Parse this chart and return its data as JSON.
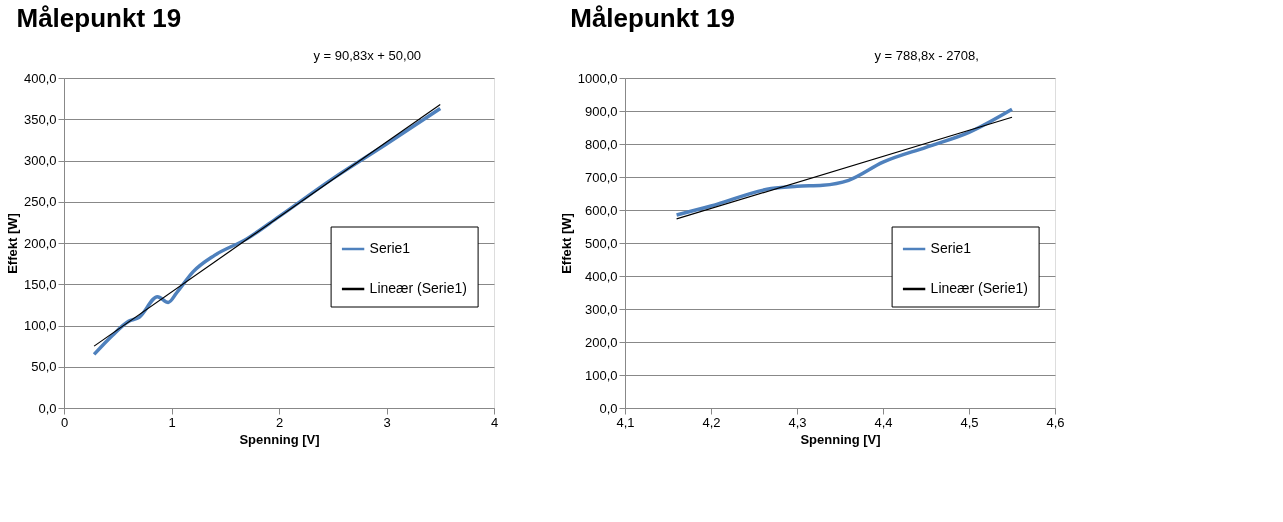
{
  "chart_data": [
    {
      "type": "line",
      "title": "Målepunkt 19",
      "xlabel": "Spenning [V]",
      "ylabel": "Effekt [W]",
      "annotations": [
        "y = 90,83x + 50,00"
      ],
      "xlim": [
        0,
        4
      ],
      "xticks": [
        0,
        1,
        2,
        3,
        4
      ],
      "ylim": [
        0,
        400
      ],
      "yticks": [
        {
          "value": 0,
          "label": "0,0"
        },
        {
          "value": 50,
          "label": "50,0"
        },
        {
          "value": 100,
          "label": "100,0"
        },
        {
          "value": 150,
          "label": "150,0"
        },
        {
          "value": 200,
          "label": "200,0"
        },
        {
          "value": 250,
          "label": "250,0"
        },
        {
          "value": 300,
          "label": "300,0"
        },
        {
          "value": 350,
          "label": "350,0"
        },
        {
          "value": 400,
          "label": "400,0"
        }
      ],
      "grid": "y",
      "legend": "right",
      "marker": "none",
      "series": [
        {
          "name": "Serie1",
          "color": "#4f81bd",
          "x": [
            0.28,
            0.45,
            0.6,
            0.7,
            0.87,
            0.97,
            1.05,
            1.2,
            1.4,
            1.7,
            2.0,
            2.5,
            3.0,
            3.5
          ],
          "values": [
            65,
            88,
            105,
            110,
            135,
            128,
            140,
            165,
            185,
            205,
            232,
            278,
            320,
            363
          ]
        },
        {
          "name": "Lineær (Serie1)",
          "color": "#000000",
          "type": "line",
          "x": [
            0.28,
            3.5
          ],
          "values": [
            75,
            368
          ]
        }
      ]
    },
    {
      "type": "line",
      "title": "Målepunkt 19",
      "xlabel": "Spenning [V]",
      "ylabel": "Effekt [W]",
      "annotations": [
        "y = 788,8x - 2708,"
      ],
      "xlim": [
        4.1,
        4.6
      ],
      "xticks": [
        {
          "value": 4.1,
          "label": "4,1"
        },
        {
          "value": 4.2,
          "label": "4,2"
        },
        {
          "value": 4.3,
          "label": "4,3"
        },
        {
          "value": 4.4,
          "label": "4,4"
        },
        {
          "value": 4.5,
          "label": "4,5"
        },
        {
          "value": 4.6,
          "label": "4,6"
        }
      ],
      "ylim": [
        0,
        1000
      ],
      "yticks": [
        {
          "value": 0,
          "label": "0,0"
        },
        {
          "value": 100,
          "label": "100,0"
        },
        {
          "value": 200,
          "label": "200,0"
        },
        {
          "value": 300,
          "label": "300,0"
        },
        {
          "value": 400,
          "label": "400,0"
        },
        {
          "value": 500,
          "label": "500,0"
        },
        {
          "value": 600,
          "label": "600,0"
        },
        {
          "value": 700,
          "label": "700,0"
        },
        {
          "value": 800,
          "label": "800,0"
        },
        {
          "value": 900,
          "label": "900,0"
        },
        {
          "value": 1000,
          "label": "1000,0"
        }
      ],
      "grid": "y",
      "legend": "right",
      "marker": "none",
      "series": [
        {
          "name": "Serie1",
          "color": "#4f81bd",
          "x": [
            4.16,
            4.2,
            4.27,
            4.3,
            4.33,
            4.36,
            4.4,
            4.45,
            4.5,
            4.55
          ],
          "values": [
            585,
            612,
            665,
            672,
            675,
            690,
            745,
            790,
            835,
            905
          ]
        },
        {
          "name": "Lineær (Serie1)",
          "color": "#000000",
          "type": "line",
          "x": [
            4.16,
            4.55
          ],
          "values": [
            573,
            881
          ]
        }
      ]
    }
  ]
}
